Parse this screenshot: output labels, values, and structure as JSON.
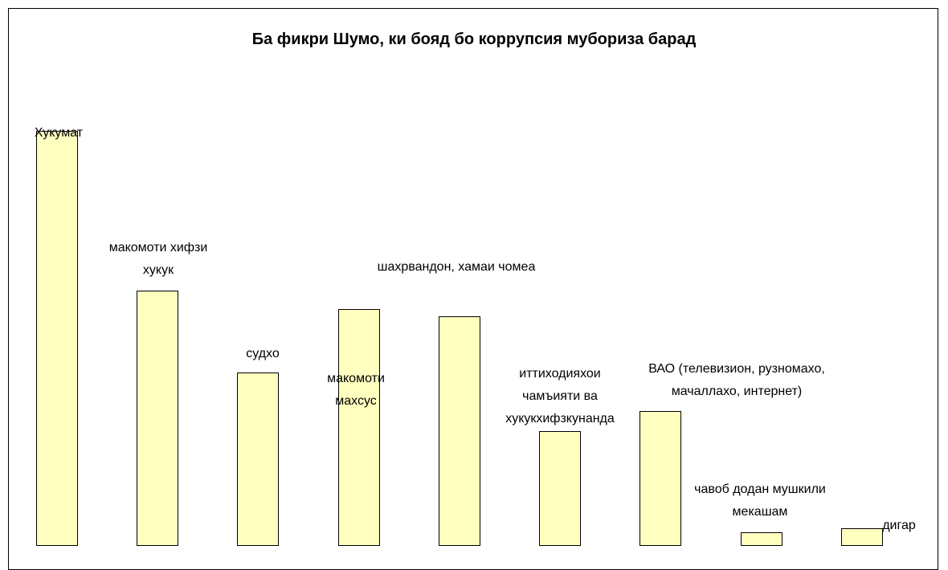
{
  "chart_data": {
    "type": "bar",
    "title": "Ба фикри Шумо, ки бояд бо коррупсия мубориза барад",
    "categories": [
      "Хукумат",
      "макомоти хифзи хукук",
      "судхо",
      "макомоти махсус",
      "шахрвандон, хамаи чомеа",
      "иттиходияхои чамъияти ва хукукхифзкунанда",
      "ВАО (телевизион, рузномахо, мачаллахо, интернет)",
      "чавоб додан мушкили мекашам",
      "дигар"
    ],
    "values": [
      50.7,
      30.8,
      20.6,
      28.5,
      27.6,
      13.3,
      15.8,
      0.7,
      1.2
    ],
    "color": "#ffffc0",
    "ylim": [
      0,
      60
    ]
  }
}
